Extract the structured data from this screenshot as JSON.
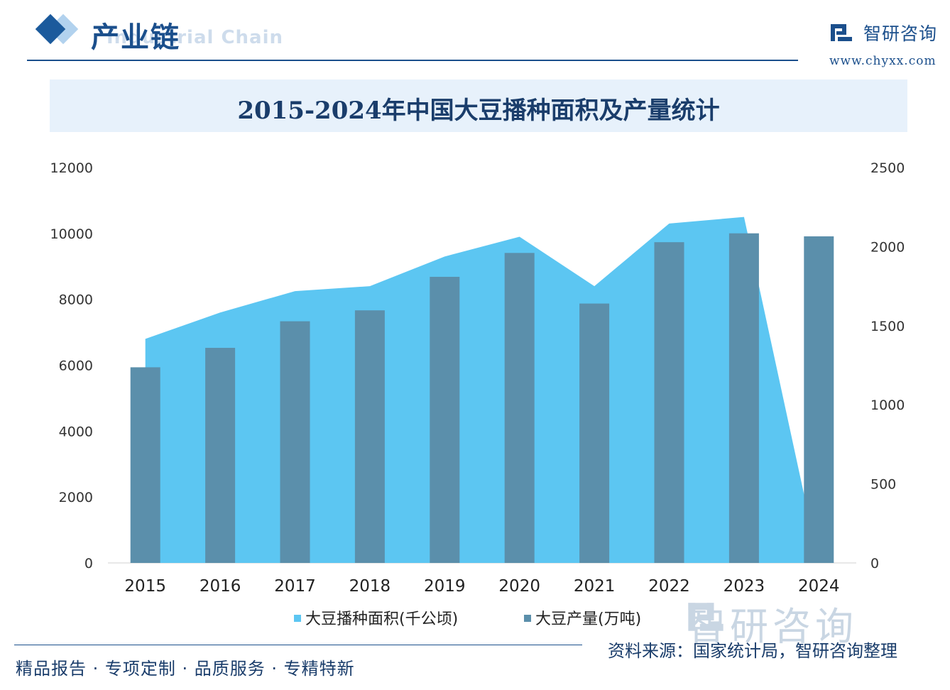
{
  "header": {
    "section_title": "产业链",
    "section_subtitle": "Industrial Chain",
    "brand_name": "智研咨询",
    "brand_url": "www.chyxx.com"
  },
  "chart_data": {
    "type": "bar+area",
    "title": "2015-2024年中国大豆播种面积及产量统计",
    "categories": [
      "2015",
      "2016",
      "2017",
      "2018",
      "2019",
      "2020",
      "2021",
      "2022",
      "2023",
      "2024"
    ],
    "series": [
      {
        "name": "大豆播种面积(千公顷)",
        "type": "area",
        "axis": "left",
        "color": "#5cc6f2",
        "values": [
          6800,
          7600,
          8250,
          8400,
          9300,
          9900,
          8400,
          10300,
          10500,
          0
        ]
      },
      {
        "name": "大豆产量(万吨)",
        "type": "bar",
        "axis": "right",
        "color": "#5b8fab",
        "values": [
          1237,
          1360,
          1528,
          1597,
          1809,
          1960,
          1640,
          2028,
          2084,
          2065
        ]
      }
    ],
    "left_axis": {
      "min": 0,
      "max": 12000,
      "ticks": [
        "0",
        "2000",
        "4000",
        "6000",
        "8000",
        "10000",
        "12000"
      ]
    },
    "right_axis": {
      "min": 0,
      "max": 2500,
      "ticks": [
        "0",
        "500",
        "1000",
        "1500",
        "2000",
        "2500"
      ]
    },
    "legend_position": "bottom"
  },
  "footer": {
    "tagline": "精品报告 · 专项定制 · 品质服务 · 专精特新",
    "source": "资料来源：国家统计局，智研咨询整理",
    "watermark": "智研咨询"
  },
  "colors": {
    "brand": "#1b4f8c",
    "title_band": "#e7f1fb",
    "area": "#5cc6f2",
    "bar": "#5b8fab"
  }
}
